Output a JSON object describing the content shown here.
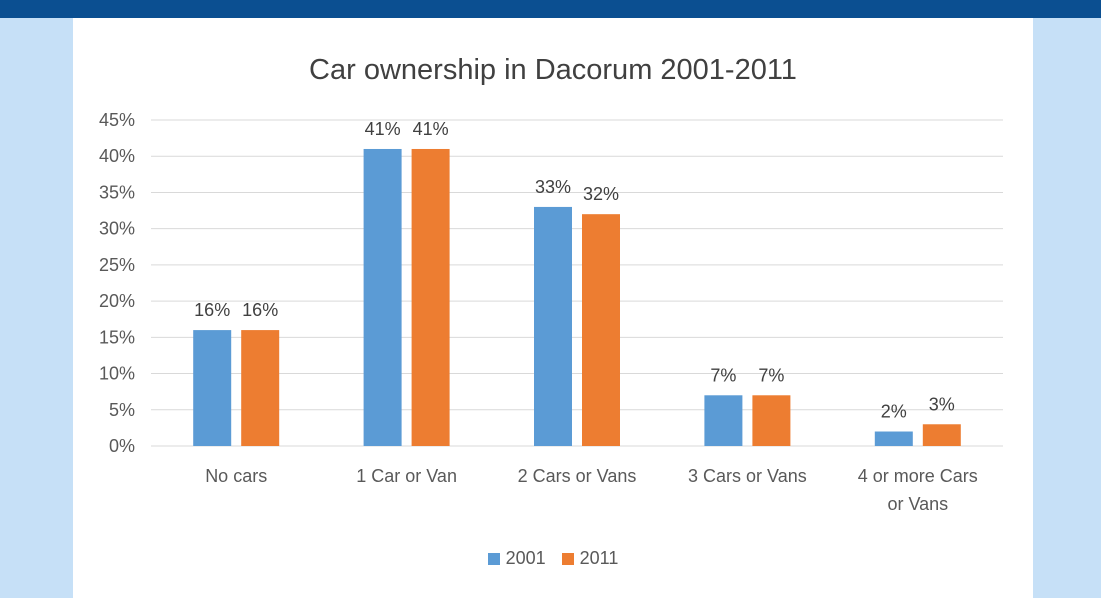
{
  "colors": {
    "series_2001": "#5b9bd5",
    "series_2011": "#ed7d31",
    "grid": "#d9d9d9"
  },
  "chart_data": {
    "type": "bar",
    "title": "Car ownership in Dacorum 2001-2011",
    "xlabel": "",
    "ylabel": "",
    "ylim": [
      0,
      45
    ],
    "y_ticks": [
      "0%",
      "5%",
      "10%",
      "15%",
      "20%",
      "25%",
      "30%",
      "35%",
      "40%",
      "45%"
    ],
    "categories": [
      "No cars",
      "1 Car or Van",
      "2 Cars or Vans",
      "3 Cars or Vans",
      "4 or more Cars or Vans"
    ],
    "category_lines": [
      [
        "No cars"
      ],
      [
        "1 Car or Van"
      ],
      [
        "2 Cars or Vans"
      ],
      [
        "3 Cars or Vans"
      ],
      [
        "4 or more Cars",
        "or Vans"
      ]
    ],
    "series": [
      {
        "name": "2001",
        "values": [
          16,
          41,
          33,
          7,
          2
        ],
        "labels": [
          "16%",
          "41%",
          "33%",
          "7%",
          "2%"
        ]
      },
      {
        "name": "2011",
        "values": [
          16,
          41,
          32,
          7,
          3
        ],
        "labels": [
          "16%",
          "41%",
          "32%",
          "7%",
          "3%"
        ]
      }
    ],
    "grid": true,
    "legend_position": "bottom"
  }
}
